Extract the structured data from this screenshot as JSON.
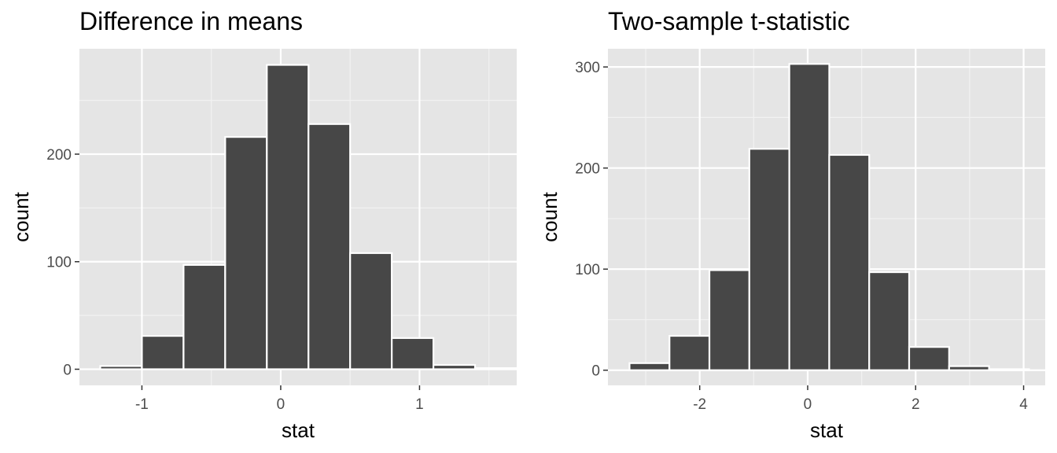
{
  "chart_data": [
    {
      "type": "bar",
      "title": "Difference in means",
      "xlabel": "stat",
      "ylabel": "count",
      "bins": [
        {
          "x0": -1.3,
          "x1": -1.0,
          "count": 3
        },
        {
          "x0": -1.0,
          "x1": -0.7,
          "count": 31
        },
        {
          "x0": -0.7,
          "x1": -0.4,
          "count": 97
        },
        {
          "x0": -0.4,
          "x1": -0.1,
          "count": 216
        },
        {
          "x0": -0.1,
          "x1": 0.2,
          "count": 283
        },
        {
          "x0": 0.2,
          "x1": 0.5,
          "count": 228
        },
        {
          "x0": 0.5,
          "x1": 0.8,
          "count": 108
        },
        {
          "x0": 0.8,
          "x1": 1.1,
          "count": 29
        },
        {
          "x0": 1.1,
          "x1": 1.4,
          "count": 4
        },
        {
          "x0": 1.4,
          "x1": 1.7,
          "count": 1
        }
      ],
      "xlim": [
        -1.45,
        1.7
      ],
      "ylim": [
        -15,
        298
      ],
      "x_ticks": [
        -1,
        0,
        1
      ],
      "x_tick_labels": [
        "-1",
        "0",
        "1"
      ],
      "y_ticks": [
        0,
        100,
        200
      ],
      "y_tick_labels": [
        "0",
        "100",
        "200"
      ],
      "grid": true,
      "bar_color": "#474747",
      "panel_color": "#e5e5e5"
    },
    {
      "type": "bar",
      "title": "Two-sample t-statistic",
      "xlabel": "stat",
      "ylabel": "count",
      "bins": [
        {
          "x0": -3.3,
          "x1": -2.56,
          "count": 7
        },
        {
          "x0": -2.56,
          "x1": -1.82,
          "count": 34
        },
        {
          "x0": -1.82,
          "x1": -1.08,
          "count": 99
        },
        {
          "x0": -1.08,
          "x1": -0.34,
          "count": 219
        },
        {
          "x0": -0.34,
          "x1": 0.4,
          "count": 303
        },
        {
          "x0": 0.4,
          "x1": 1.14,
          "count": 213
        },
        {
          "x0": 1.14,
          "x1": 1.88,
          "count": 97
        },
        {
          "x0": 1.88,
          "x1": 2.62,
          "count": 23
        },
        {
          "x0": 2.62,
          "x1": 3.36,
          "count": 4
        },
        {
          "x0": 3.36,
          "x1": 4.1,
          "count": 1
        }
      ],
      "xlim": [
        -3.7,
        4.4
      ],
      "ylim": [
        -15,
        318
      ],
      "x_ticks": [
        -2,
        0,
        2,
        4
      ],
      "x_tick_labels": [
        "-2",
        "0",
        "2",
        "4"
      ],
      "y_ticks": [
        0,
        100,
        200,
        300
      ],
      "y_tick_labels": [
        "0",
        "100",
        "200",
        "300"
      ],
      "grid": true,
      "bar_color": "#474747",
      "panel_color": "#e5e5e5"
    }
  ]
}
